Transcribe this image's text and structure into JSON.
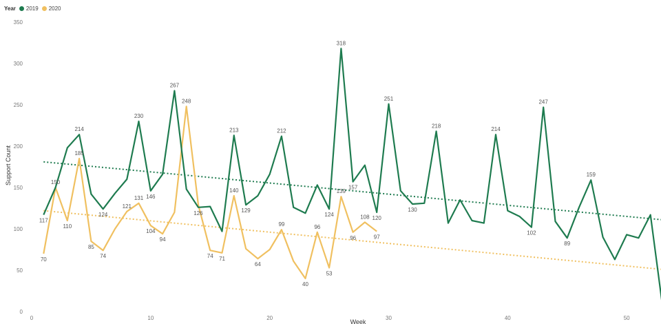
{
  "legend": {
    "title": "Year",
    "items": [
      {
        "name": "2019",
        "color": "#1e7b4f"
      },
      {
        "name": "2020",
        "color": "#f0c060"
      }
    ]
  },
  "chart_data": {
    "type": "line",
    "xlabel": "Week",
    "ylabel": "Support Count",
    "xlim": [
      0,
      53
    ],
    "ylim": [
      0,
      350
    ],
    "x_ticks": [
      0,
      10,
      20,
      30,
      40,
      50
    ],
    "y_ticks": [
      0,
      50,
      100,
      150,
      200,
      250,
      300,
      350
    ],
    "grid": false,
    "legend_position": "top-left",
    "series": [
      {
        "name": "2019",
        "color": "#1e7b4f",
        "x": [
          1,
          2,
          3,
          4,
          5,
          6,
          7,
          8,
          9,
          10,
          11,
          12,
          13,
          14,
          15,
          16,
          17,
          18,
          19,
          20,
          21,
          22,
          23,
          24,
          25,
          26,
          27,
          28,
          29,
          30,
          31,
          32,
          33,
          34,
          35,
          36,
          37,
          38,
          39,
          40,
          41,
          42,
          43,
          44,
          45,
          46,
          47,
          48,
          49,
          50,
          51,
          52,
          53
        ],
        "values": [
          117,
          150,
          198,
          214,
          142,
          124,
          143,
          160,
          230,
          146,
          166,
          267,
          148,
          126,
          127,
          97,
          213,
          129,
          140,
          166,
          212,
          126,
          119,
          153,
          124,
          318,
          157,
          177,
          120,
          251,
          146,
          130,
          131,
          218,
          107,
          135,
          110,
          107,
          214,
          122,
          115,
          102,
          247,
          109,
          89,
          126,
          159,
          90,
          63,
          93,
          89,
          117,
          8
        ],
        "trend": [
          181,
          111
        ]
      },
      {
        "name": "2020",
        "color": "#f0c060",
        "x": [
          1,
          2,
          3,
          4,
          5,
          6,
          7,
          8,
          9,
          10,
          11,
          12,
          13,
          14,
          15,
          16,
          17,
          18,
          19,
          20,
          21,
          22,
          23,
          24,
          25,
          26,
          27,
          28,
          29
        ],
        "values": [
          70,
          150,
          110,
          185,
          85,
          74,
          100,
          121,
          131,
          104,
          94,
          120,
          248,
          129,
          74,
          71,
          140,
          76,
          64,
          75,
          99,
          61,
          40,
          96,
          53,
          139,
          96,
          108,
          97
        ],
        "trend": [
          122,
          51
        ]
      }
    ],
    "data_labels": [
      {
        "series": 0,
        "x": 1,
        "text": "117",
        "pos": "below"
      },
      {
        "series": 0,
        "x": 4,
        "text": "214",
        "pos": "above"
      },
      {
        "series": 0,
        "x": 6,
        "text": "124",
        "pos": "below"
      },
      {
        "series": 0,
        "x": 9,
        "text": "230",
        "pos": "above"
      },
      {
        "series": 0,
        "x": 10,
        "text": "146",
        "pos": "below"
      },
      {
        "series": 0,
        "x": 12,
        "text": "267",
        "pos": "above"
      },
      {
        "series": 0,
        "x": 14,
        "text": "126",
        "pos": "below"
      },
      {
        "series": 0,
        "x": 17,
        "text": "213",
        "pos": "above"
      },
      {
        "series": 0,
        "x": 18,
        "text": "129",
        "pos": "below"
      },
      {
        "series": 0,
        "x": 21,
        "text": "212",
        "pos": "above"
      },
      {
        "series": 0,
        "x": 25,
        "text": "124",
        "pos": "below"
      },
      {
        "series": 0,
        "x": 26,
        "text": "318",
        "pos": "above"
      },
      {
        "series": 0,
        "x": 27,
        "text": "157",
        "pos": "below"
      },
      {
        "series": 0,
        "x": 29,
        "text": "120",
        "pos": "below"
      },
      {
        "series": 0,
        "x": 30,
        "text": "251",
        "pos": "above"
      },
      {
        "series": 0,
        "x": 32,
        "text": "130",
        "pos": "below"
      },
      {
        "series": 0,
        "x": 34,
        "text": "218",
        "pos": "above"
      },
      {
        "series": 0,
        "x": 39,
        "text": "214",
        "pos": "above"
      },
      {
        "series": 0,
        "x": 42,
        "text": "102",
        "pos": "below"
      },
      {
        "series": 0,
        "x": 43,
        "text": "247",
        "pos": "above"
      },
      {
        "series": 0,
        "x": 45,
        "text": "89",
        "pos": "below"
      },
      {
        "series": 0,
        "x": 47,
        "text": "159",
        "pos": "above"
      },
      {
        "series": 1,
        "x": 1,
        "text": "70",
        "pos": "below"
      },
      {
        "series": 1,
        "x": 2,
        "text": "150",
        "pos": "above"
      },
      {
        "series": 1,
        "x": 3,
        "text": "110",
        "pos": "below"
      },
      {
        "series": 1,
        "x": 4,
        "text": "185",
        "pos": "above"
      },
      {
        "series": 1,
        "x": 5,
        "text": "85",
        "pos": "below"
      },
      {
        "series": 1,
        "x": 6,
        "text": "74",
        "pos": "below"
      },
      {
        "series": 1,
        "x": 8,
        "text": "121",
        "pos": "above"
      },
      {
        "series": 1,
        "x": 9,
        "text": "131",
        "pos": "above"
      },
      {
        "series": 1,
        "x": 10,
        "text": "104",
        "pos": "below"
      },
      {
        "series": 1,
        "x": 11,
        "text": "94",
        "pos": "below"
      },
      {
        "series": 1,
        "x": 13,
        "text": "248",
        "pos": "above"
      },
      {
        "series": 1,
        "x": 15,
        "text": "74",
        "pos": "below"
      },
      {
        "series": 1,
        "x": 16,
        "text": "71",
        "pos": "below"
      },
      {
        "series": 1,
        "x": 17,
        "text": "140",
        "pos": "above"
      },
      {
        "series": 1,
        "x": 19,
        "text": "64",
        "pos": "below"
      },
      {
        "series": 1,
        "x": 21,
        "text": "99",
        "pos": "above"
      },
      {
        "series": 1,
        "x": 23,
        "text": "40",
        "pos": "below"
      },
      {
        "series": 1,
        "x": 24,
        "text": "96",
        "pos": "above"
      },
      {
        "series": 1,
        "x": 25,
        "text": "53",
        "pos": "below"
      },
      {
        "series": 1,
        "x": 26,
        "text": "139",
        "pos": "above"
      },
      {
        "series": 1,
        "x": 27,
        "text": "96",
        "pos": "below"
      },
      {
        "series": 1,
        "x": 28,
        "text": "108",
        "pos": "above"
      },
      {
        "series": 1,
        "x": 29,
        "text": "97",
        "pos": "below"
      }
    ]
  }
}
